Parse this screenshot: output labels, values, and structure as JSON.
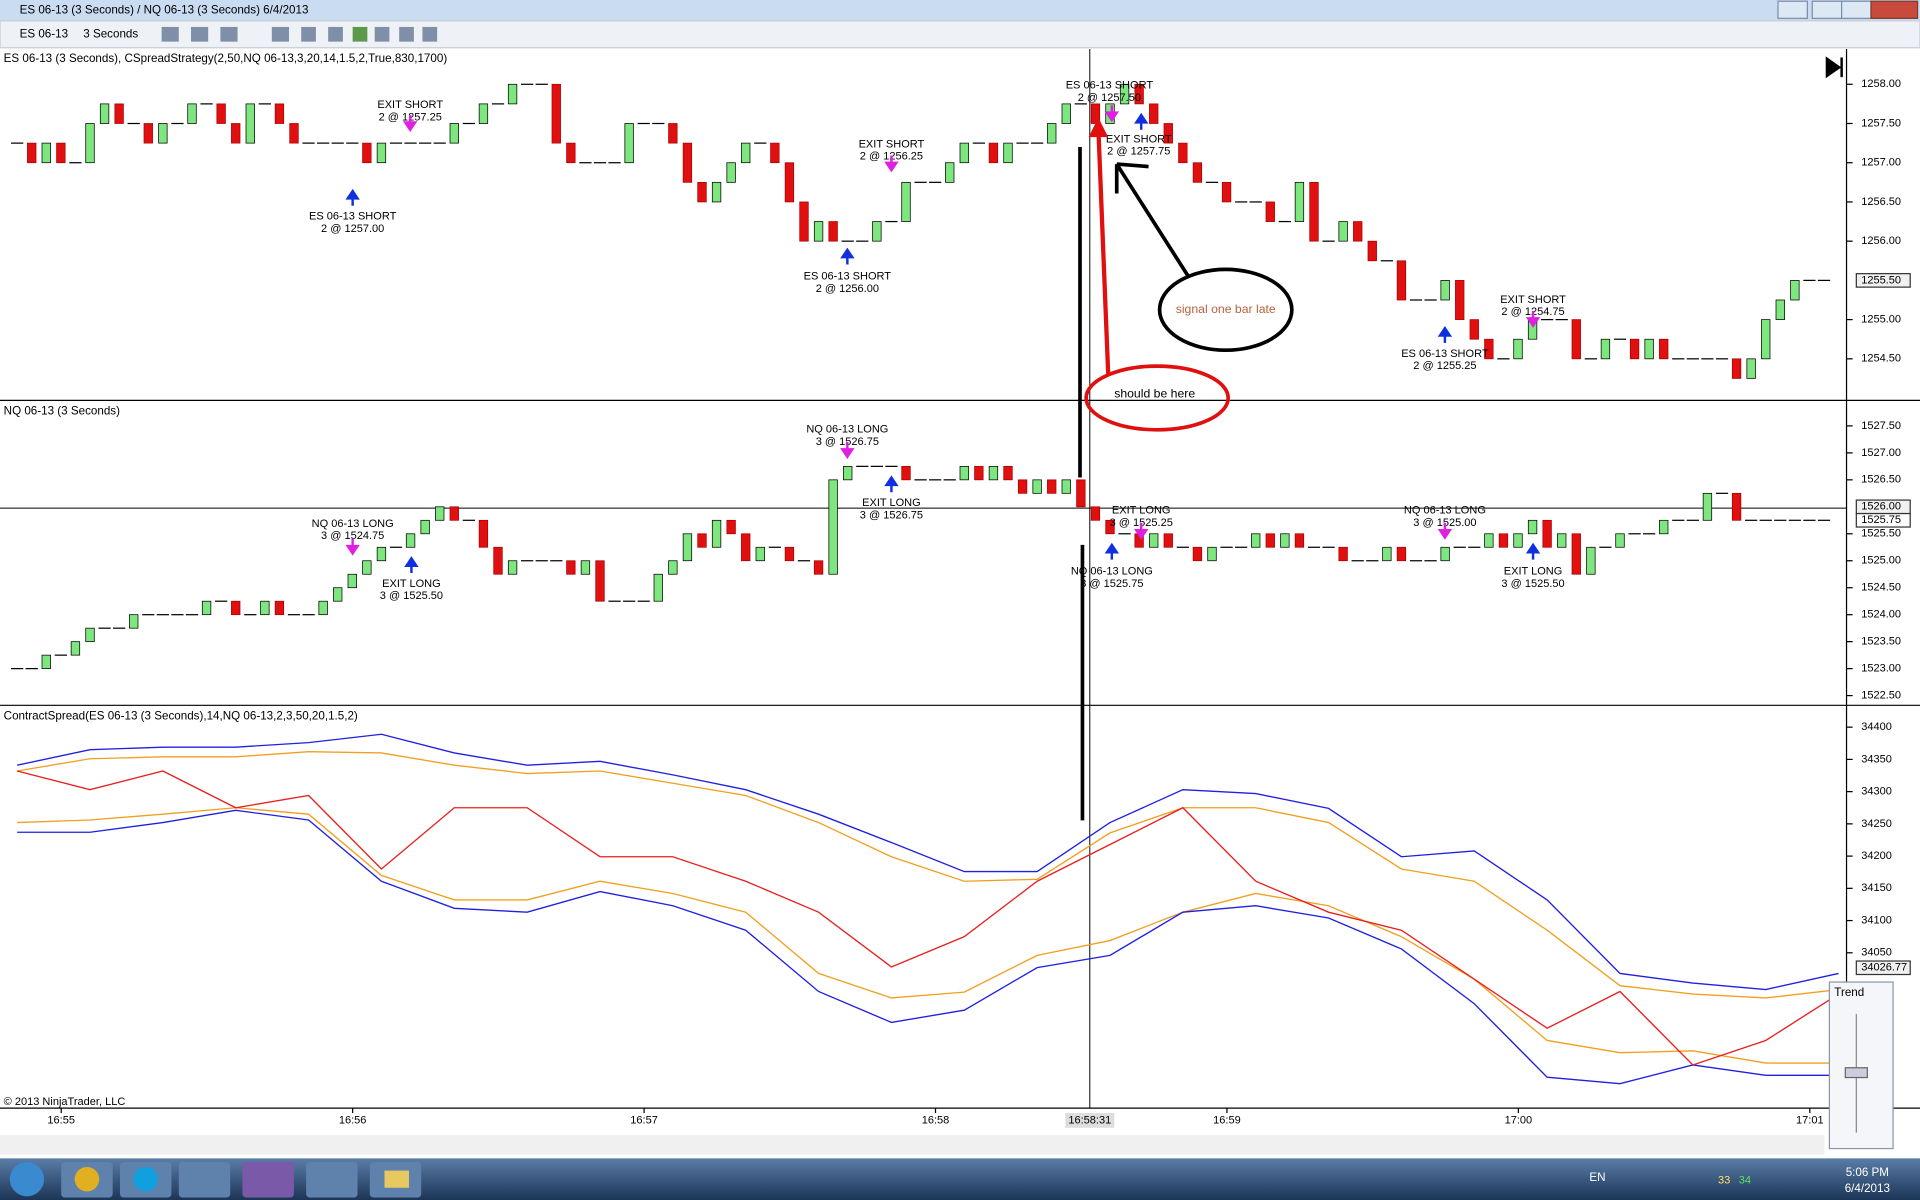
{
  "window": {
    "title": "ES 06-13 (3 Seconds) / NQ 06-13 (3 Seconds)  6/4/2013"
  },
  "toolbar": {
    "instrument": "ES 06-13",
    "interval": "3 Seconds"
  },
  "panels": [
    {
      "label": "ES 06-13 (3 Seconds), CSpreadStrategy(2,50,NQ 06-13,3,20,14,1.5,2,True,830,1700)",
      "type": "candlestick",
      "ylim": [
        1253.97,
        1258.45
      ],
      "yticks": [
        {
          "value": 1258,
          "label": "1258.00"
        },
        {
          "value": 1257.5,
          "label": "1257.50"
        },
        {
          "value": 1257,
          "label": "1257.00"
        },
        {
          "value": 1256.5,
          "label": "1256.50"
        },
        {
          "value": 1256,
          "label": "1256.00"
        },
        {
          "value": 1255,
          "label": "1255.00"
        },
        {
          "value": 1254.5,
          "label": "1254.50"
        }
      ],
      "markers": [
        {
          "value": 1255.5,
          "label": "1255.50"
        }
      ],
      "closes": [
        1257.25,
        1257.0,
        1257.25,
        1257.0,
        1257.0,
        1257.5,
        1257.75,
        1257.5,
        1257.5,
        1257.25,
        1257.5,
        1257.5,
        1257.75,
        1257.75,
        1257.5,
        1257.25,
        1257.75,
        1257.75,
        1257.5,
        1257.25,
        1257.25,
        1257.25,
        1257.25,
        1257.25,
        1257.0,
        1257.25,
        1257.25,
        1257.25,
        1257.25,
        1257.25,
        1257.5,
        1257.5,
        1257.75,
        1257.75,
        1258.0,
        1258.0,
        1258.0,
        1257.25,
        1257.0,
        1257.0,
        1257.0,
        1257.0,
        1257.5,
        1257.5,
        1257.5,
        1257.25,
        1256.75,
        1256.5,
        1256.75,
        1257.0,
        1257.25,
        1257.25,
        1257.0,
        1256.5,
        1256.0,
        1256.25,
        1256.0,
        1256.0,
        1256.0,
        1256.25,
        1256.25,
        1256.75,
        1256.75,
        1256.75,
        1257.0,
        1257.25,
        1257.25,
        1257.0,
        1257.25,
        1257.25,
        1257.25,
        1257.5,
        1257.75,
        1257.75,
        1257.5,
        1257.75,
        1258.0,
        1257.75,
        1257.5,
        1257.25,
        1257.0,
        1256.75,
        1256.75,
        1256.5,
        1256.5,
        1256.5,
        1256.25,
        1256.25,
        1256.75,
        1256.0,
        1256.0,
        1256.25,
        1256.0,
        1255.75,
        1255.75,
        1255.25,
        1255.25,
        1255.25,
        1255.5,
        1255.0,
        1254.75,
        1254.5,
        1254.5,
        1254.75,
        1255.0,
        1255.0,
        1255.0,
        1254.5,
        1254.5,
        1254.75,
        1254.75,
        1254.5,
        1254.75,
        1254.5,
        1254.5,
        1254.5,
        1254.5,
        1254.5,
        1254.25,
        1254.5,
        1255.0,
        1255.25,
        1255.5,
        1255.5,
        1255.5
      ],
      "executions": [
        {
          "lines": [
            "EXIT SHORT",
            "2 @ 1257.25"
          ]
        },
        {
          "lines": [
            "ES 06-13 SHORT",
            "2 @ 1257.00"
          ]
        },
        {
          "lines": [
            "EXIT SHORT",
            "2 @ 1256.25"
          ]
        },
        {
          "lines": [
            "ES 06-13 SHORT",
            "2 @ 1256.00"
          ]
        },
        {
          "lines": [
            "ES 06-13 SHORT",
            "2 @ 1257.50"
          ]
        },
        {
          "lines": [
            "EXIT SHORT",
            "2 @ 1257.75"
          ]
        },
        {
          "lines": [
            "EXIT SHORT",
            "2 @ 1254.75"
          ]
        },
        {
          "lines": [
            "ES 06-13 SHORT",
            "2 @ 1255.25"
          ]
        }
      ]
    },
    {
      "label": "NQ 06-13 (3 Seconds)",
      "type": "candlestick",
      "ylim": [
        1522.32,
        1527.95
      ],
      "yticks": [
        {
          "value": 1527.5,
          "label": "1527.50"
        },
        {
          "value": 1527,
          "label": "1527.00"
        },
        {
          "value": 1526.5,
          "label": "1526.50"
        },
        {
          "value": 1525.5,
          "label": "1525.50"
        },
        {
          "value": 1525,
          "label": "1525.00"
        },
        {
          "value": 1524.5,
          "label": "1524.50"
        },
        {
          "value": 1524,
          "label": "1524.00"
        },
        {
          "value": 1523.5,
          "label": "1523.50"
        },
        {
          "value": 1523,
          "label": "1523.00"
        },
        {
          "value": 1522.5,
          "label": "1522.50"
        }
      ],
      "markers": [
        {
          "value": 1526,
          "label": "1526.00"
        },
        {
          "value": 1525.75,
          "label": "1525.75"
        }
      ],
      "closes": [
        1523.0,
        1523.0,
        1523.25,
        1523.25,
        1523.5,
        1523.75,
        1523.75,
        1523.75,
        1524.0,
        1524.0,
        1524.0,
        1524.0,
        1524.0,
        1524.25,
        1524.25,
        1524.0,
        1524.0,
        1524.25,
        1524.0,
        1524.0,
        1524.0,
        1524.25,
        1524.5,
        1524.75,
        1525.0,
        1525.25,
        1525.25,
        1525.5,
        1525.75,
        1526.0,
        1525.75,
        1525.75,
        1525.25,
        1524.75,
        1525.0,
        1525.0,
        1525.0,
        1525.0,
        1524.75,
        1525.0,
        1524.25,
        1524.25,
        1524.25,
        1524.25,
        1524.75,
        1525.0,
        1525.5,
        1525.25,
        1525.75,
        1525.5,
        1525.0,
        1525.25,
        1525.25,
        1525.0,
        1525.0,
        1524.75,
        1526.5,
        1526.75,
        1526.75,
        1526.75,
        1526.75,
        1526.5,
        1526.5,
        1526.5,
        1526.5,
        1526.75,
        1526.5,
        1526.75,
        1526.5,
        1526.25,
        1526.5,
        1526.25,
        1526.5,
        1526.0,
        1525.75,
        1525.5,
        1525.5,
        1525.25,
        1525.5,
        1525.25,
        1525.25,
        1525.0,
        1525.25,
        1525.25,
        1525.25,
        1525.5,
        1525.25,
        1525.5,
        1525.25,
        1525.25,
        1525.25,
        1525.0,
        1525.0,
        1525.0,
        1525.25,
        1525.0,
        1525.0,
        1525.0,
        1525.25,
        1525.25,
        1525.25,
        1525.5,
        1525.25,
        1525.5,
        1525.75,
        1525.25,
        1525.5,
        1524.75,
        1525.25,
        1525.25,
        1525.5,
        1525.5,
        1525.5,
        1525.75,
        1525.75,
        1525.75,
        1526.25,
        1526.25,
        1525.75,
        1525.75,
        1525.75,
        1525.75,
        1525.75,
        1525.75,
        1525.75
      ],
      "executions": [
        {
          "lines": [
            "NQ 06-13 LONG",
            "3 @ 1524.75"
          ]
        },
        {
          "lines": [
            "EXIT LONG",
            "3 @ 1525.50"
          ]
        },
        {
          "lines": [
            "NQ 06-13 LONG",
            "3 @ 1526.75"
          ]
        },
        {
          "lines": [
            "EXIT LONG",
            "3 @ 1526.75"
          ]
        },
        {
          "lines": [
            "EXIT LONG",
            "3 @ 1525.25"
          ]
        },
        {
          "lines": [
            "NQ 06-13 LONG",
            "3 @ 1525.75"
          ]
        },
        {
          "lines": [
            "NQ 06-13 LONG",
            "3 @ 1525.00"
          ]
        },
        {
          "lines": [
            "EXIT LONG",
            "3 @ 1525.50"
          ]
        }
      ]
    },
    {
      "label": "ContractSpread(ES 06-13 (3 Seconds),14,NQ 06-13,2,3,50,20,1.5,2)",
      "type": "line",
      "ylim": [
        33809,
        34432
      ],
      "yticks": [
        34400,
        34350,
        34300,
        34250,
        34200,
        34150,
        34100,
        34050
      ],
      "markers": [
        {
          "value": 34026.77,
          "label": "34026.77"
        }
      ],
      "x": [
        0,
        5,
        10,
        15,
        20,
        25,
        30,
        35,
        40,
        45,
        50,
        55,
        60,
        65,
        70,
        75,
        80,
        85,
        90,
        95,
        100,
        105,
        110,
        115,
        120,
        125
      ],
      "series": [
        {
          "color": "#2020e0",
          "values": [
            34341,
            34365,
            34369,
            34369,
            34376,
            34389,
            34360,
            34341,
            34347,
            34326,
            34303,
            34265,
            34221,
            34176,
            34176,
            34252,
            34303,
            34297,
            34274,
            34199,
            34208,
            34132,
            34018,
            34003,
            33993,
            34018
          ]
        },
        {
          "color": "#f0a020",
          "values": [
            34332,
            34351,
            34354,
            34354,
            34362,
            34360,
            34341,
            34328,
            34332,
            34313,
            34294,
            34252,
            34199,
            34161,
            34164,
            34236,
            34275,
            34275,
            34252,
            34180,
            34161,
            34085,
            33999,
            33986,
            33980,
            33993
          ]
        },
        {
          "color": "#f0a020",
          "values": [
            34252,
            34256,
            34265,
            34275,
            34265,
            34170,
            34132,
            34132,
            34161,
            34142,
            34113,
            34018,
            33980,
            33989,
            34046,
            34069,
            34113,
            34142,
            34123,
            34075,
            34009,
            33914,
            33895,
            33898,
            33879,
            33879
          ]
        },
        {
          "color": "#2020e0",
          "values": [
            34237,
            34237,
            34252,
            34271,
            34256,
            34161,
            34119,
            34113,
            34145,
            34123,
            34085,
            33990,
            33942,
            33961,
            34027,
            34046,
            34113,
            34123,
            34104,
            34056,
            33971,
            33857,
            33847,
            33876,
            33860,
            33860
          ]
        },
        {
          "color": "#e82020",
          "values": [
            34332,
            34303,
            34332,
            34275,
            34294,
            34180,
            34275,
            34275,
            34199,
            34199,
            34161,
            34113,
            34028,
            34075,
            34161,
            34218,
            34275,
            34161,
            34113,
            34085,
            34009,
            33933,
            33990,
            33876,
            33914,
            33986
          ]
        }
      ]
    }
  ],
  "time_axis": {
    "labels": [
      "16:55",
      "16:56",
      "16:57",
      "16:58",
      "16:59",
      "17:00",
      "17:01"
    ],
    "cursor": "16:58:31"
  },
  "notes": [
    "signal one bar late",
    "should be here"
  ],
  "copyright": "© 2013 NinjaTrader, LLC",
  "trend": "Trend",
  "taskbar": {
    "lang": "EN",
    "time": "5:06 PM",
    "date": "6/4/2013",
    "tray": [
      "33",
      "34"
    ]
  }
}
